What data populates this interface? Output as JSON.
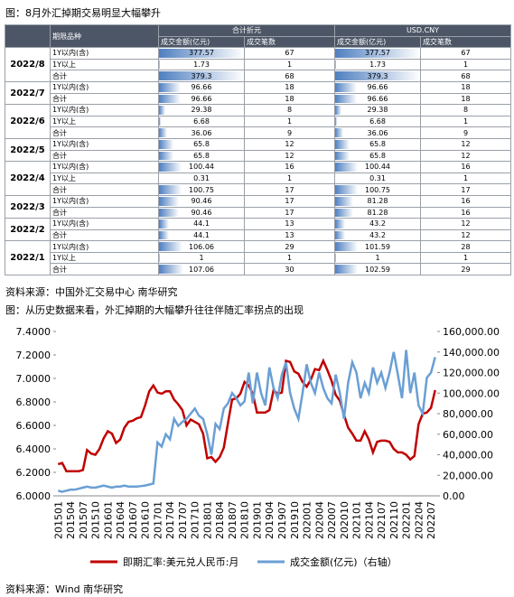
{
  "header": {
    "title": "图：8月外汇掉期交易明显大幅攀升"
  },
  "table": {
    "header": {
      "product": "期限品种",
      "group1": "合计折元",
      "group2": "USD.CNY",
      "amount": "成交金额(亿元)",
      "count": "成交笔数"
    },
    "groups": [
      {
        "month": "2022/8",
        "rows": [
          [
            "1Y以内(含)",
            377.57,
            67,
            377.57,
            67
          ],
          [
            "1Y以上",
            1.73,
            1,
            1.73,
            1
          ],
          [
            "合计",
            379.3,
            68,
            379.3,
            68
          ]
        ]
      },
      {
        "month": "2022/7",
        "rows": [
          [
            "1Y以内(含)",
            96.66,
            18,
            96.66,
            18
          ],
          [
            "合计",
            96.66,
            18,
            96.66,
            18
          ]
        ]
      },
      {
        "month": "2022/6",
        "rows": [
          [
            "1Y以内(含)",
            29.38,
            8,
            29.38,
            8
          ],
          [
            "1Y以上",
            6.68,
            1,
            6.68,
            1
          ],
          [
            "合计",
            36.06,
            9,
            36.06,
            9
          ]
        ]
      },
      {
        "month": "2022/5",
        "rows": [
          [
            "1Y以内(含)",
            65.8,
            12,
            65.8,
            12
          ],
          [
            "合计",
            65.8,
            12,
            65.8,
            12
          ]
        ]
      },
      {
        "month": "2022/4",
        "rows": [
          [
            "1Y以内(含)",
            100.44,
            16,
            100.44,
            16
          ],
          [
            "1Y以上",
            0.31,
            1,
            0.31,
            1
          ],
          [
            "合计",
            100.75,
            17,
            100.75,
            17
          ]
        ]
      },
      {
        "month": "2022/3",
        "rows": [
          [
            "1Y以内(含)",
            90.46,
            17,
            81.28,
            16
          ],
          [
            "合计",
            90.46,
            17,
            81.28,
            16
          ]
        ]
      },
      {
        "month": "2022/2",
        "rows": [
          [
            "1Y以内(含)",
            44.1,
            13,
            43.2,
            12
          ],
          [
            "合计",
            44.1,
            13,
            43.2,
            12
          ]
        ]
      },
      {
        "month": "2022/1",
        "rows": [
          [
            "1Y以内(含)",
            106.06,
            29,
            101.59,
            28
          ],
          [
            "1Y以上",
            1,
            1,
            1,
            1
          ],
          [
            "合计",
            107.06,
            30,
            102.59,
            29
          ]
        ]
      }
    ]
  },
  "source1": "资料来源：中国外汇交易中心 南华研究",
  "chart_data": {
    "type": "line",
    "title": "图：从历史数据来看，外汇掉期的大幅攀升往往伴随汇率拐点的出现",
    "categories": [
      "201501",
      null,
      null,
      "201504",
      null,
      null,
      "201507",
      null,
      null,
      "201510",
      null,
      null,
      "201601",
      null,
      null,
      "201604",
      null,
      null,
      "201607",
      null,
      null,
      "201610",
      null,
      null,
      "201701",
      null,
      null,
      "201704",
      null,
      null,
      "201707",
      null,
      null,
      "201710",
      null,
      null,
      "201801",
      null,
      null,
      "201804",
      null,
      null,
      "201807",
      null,
      null,
      "201810",
      null,
      null,
      "201901",
      null,
      null,
      "201904",
      null,
      null,
      "201907",
      null,
      null,
      "201910",
      null,
      null,
      "202001",
      null,
      null,
      "202004",
      null,
      null,
      "202007",
      null,
      null,
      "202010",
      null,
      null,
      "202101",
      null,
      null,
      "202104",
      null,
      null,
      "202107",
      null,
      null,
      "202110",
      null,
      null,
      "202201",
      null,
      null,
      "202204",
      null,
      null,
      "202207",
      null
    ],
    "series": [
      {
        "name": "即期汇率:美元兑人民币:月",
        "color": "#c00000",
        "values": [
          6.27,
          6.28,
          6.21,
          6.21,
          6.21,
          6.21,
          6.22,
          6.39,
          6.36,
          6.35,
          6.4,
          6.49,
          6.55,
          6.53,
          6.45,
          6.48,
          6.58,
          6.63,
          6.64,
          6.66,
          6.67,
          6.77,
          6.89,
          6.94,
          6.88,
          6.87,
          6.89,
          6.89,
          6.82,
          6.78,
          6.73,
          6.6,
          6.65,
          6.63,
          6.61,
          6.53,
          6.32,
          6.33,
          6.29,
          6.33,
          6.41,
          6.62,
          6.82,
          6.83,
          6.87,
          6.97,
          6.94,
          6.87,
          6.71,
          6.71,
          6.71,
          6.73,
          6.9,
          6.87,
          6.88,
          7.15,
          7.14,
          7.06,
          7.04,
          6.97,
          6.93,
          6.99,
          7.08,
          7.07,
          7.15,
          7.07,
          6.98,
          6.86,
          6.81,
          6.69,
          6.58,
          6.53,
          6.47,
          6.47,
          6.55,
          6.48,
          6.37,
          6.46,
          6.47,
          6.47,
          6.46,
          6.4,
          6.37,
          6.37,
          6.35,
          6.31,
          6.34,
          6.61,
          6.7,
          6.71,
          6.75,
          6.9
        ]
      },
      {
        "name": "成交金额(亿元)（右轴）",
        "color": "#6a9fd4",
        "axis": "y2",
        "values": [
          5000,
          4000,
          5000,
          6000,
          6000,
          7000,
          8000,
          9000,
          8000,
          8000,
          9000,
          10000,
          9000,
          8000,
          9000,
          9000,
          10000,
          9000,
          9000,
          9000,
          9500,
          10000,
          11000,
          12000,
          52000,
          48000,
          60000,
          55000,
          75000,
          68000,
          72000,
          75000,
          80000,
          85000,
          78000,
          75000,
          60000,
          40000,
          70000,
          65000,
          85000,
          90000,
          100000,
          95000,
          88000,
          92000,
          120000,
          90000,
          120000,
          100000,
          88000,
          125000,
          105000,
          95000,
          118000,
          130000,
          100000,
          85000,
          75000,
          100000,
          128000,
          110000,
          100000,
          120000,
          105000,
          95000,
          90000,
          118000,
          100000,
          75000,
          110000,
          130000,
          120000,
          95000,
          110000,
          100000,
          125000,
          110000,
          120000,
          105000,
          120000,
          140000,
          118000,
          95000,
          142000,
          100000,
          120000,
          88000,
          80000,
          115000,
          120000,
          135000
        ]
      }
    ],
    "ylim": [
      6,
      7.4
    ],
    "yticks": [
      {
        "value": 6,
        "label": "6.0000"
      },
      {
        "value": 6.2,
        "label": "6.2000"
      },
      {
        "value": 6.4,
        "label": "6.4000"
      },
      {
        "value": 6.6,
        "label": "6.6000"
      },
      {
        "value": 6.8,
        "label": "6.8000"
      },
      {
        "value": 7,
        "label": "7.0000"
      },
      {
        "value": 7.2,
        "label": "7.2000"
      },
      {
        "value": 7.4,
        "label": "7.4000"
      }
    ],
    "y2lim": [
      0,
      160000
    ],
    "y2ticks": [
      {
        "value": 0,
        "label": "0.00"
      },
      {
        "value": 20000,
        "label": "20,000.00"
      },
      {
        "value": 40000,
        "label": "40,000.00"
      },
      {
        "value": 60000,
        "label": "60,000.00"
      },
      {
        "value": 80000,
        "label": "80,000.00"
      },
      {
        "value": 100000,
        "label": "100,000.00"
      },
      {
        "value": 120000,
        "label": "120,000.00"
      },
      {
        "value": 140000,
        "label": "140,000.00"
      },
      {
        "value": 160000,
        "label": "160,000.00"
      }
    ],
    "legend": "bottom"
  },
  "source2": "资料来源：Wind 南华研究"
}
